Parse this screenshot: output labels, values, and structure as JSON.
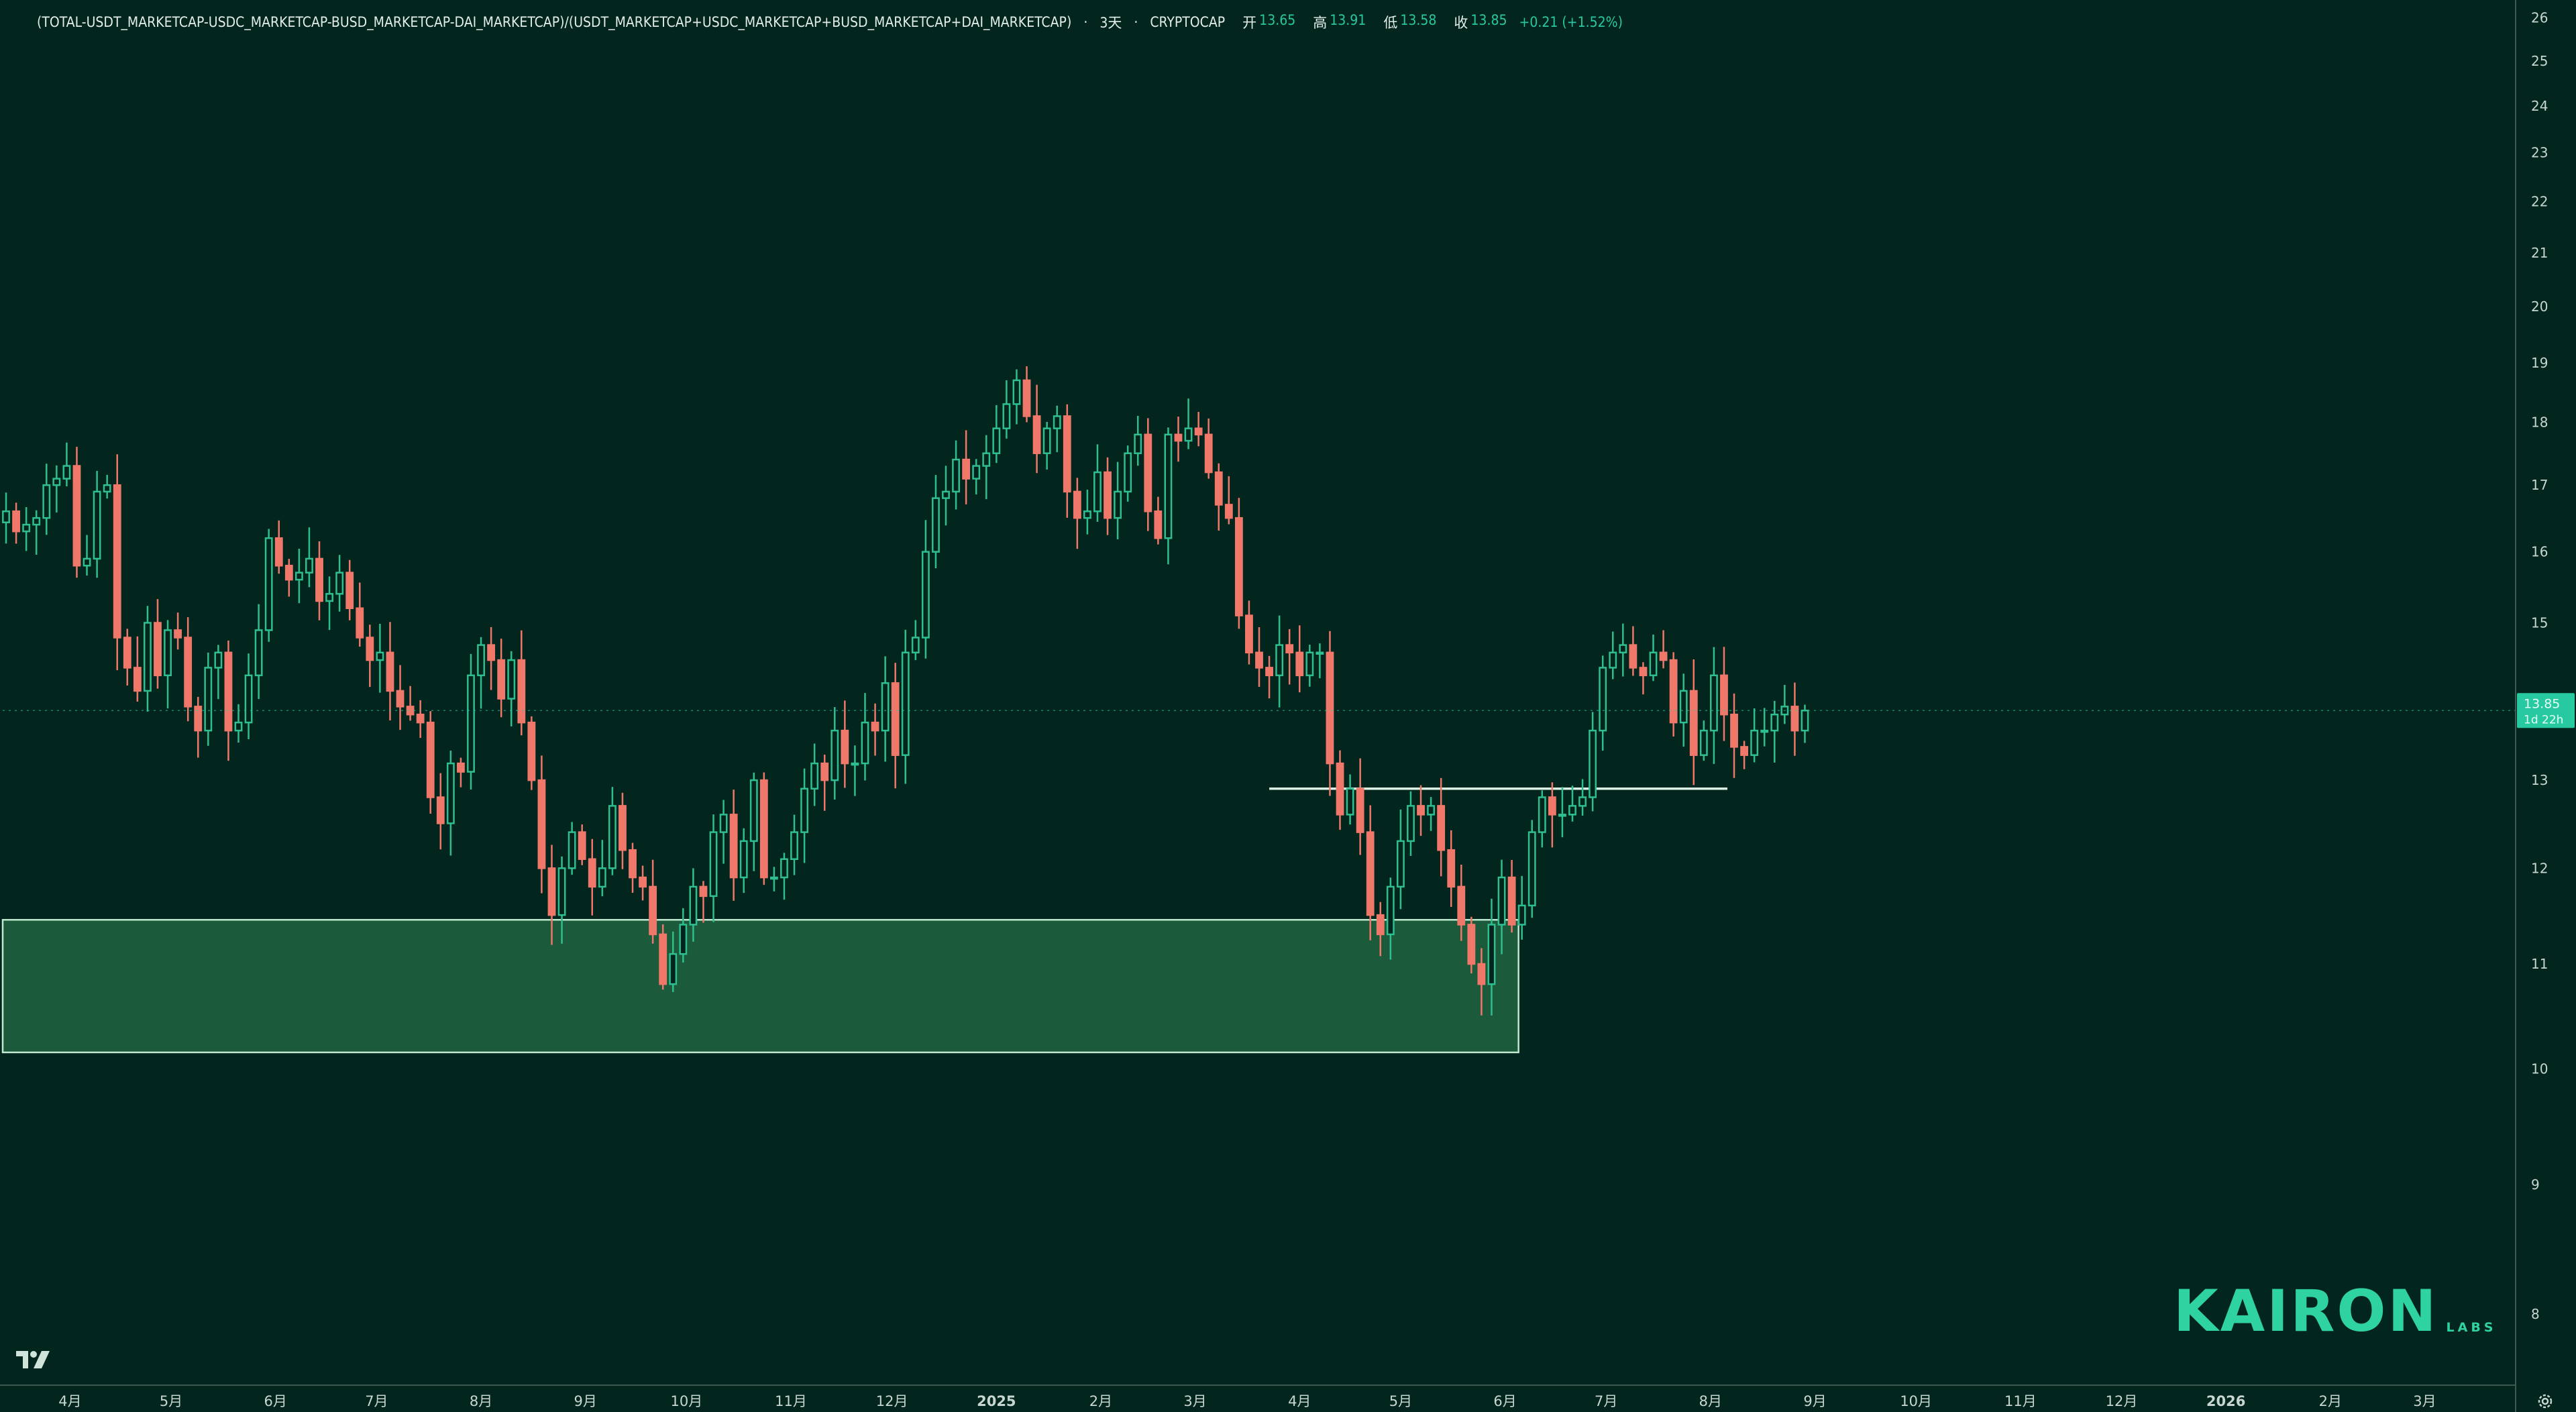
{
  "header": {
    "symbol": "(TOTAL-USDT_MARKETCAP-USDC_MARKETCAP-BUSD_MARKETCAP-DAI_MARKETCAP)/(USDT_MARKETCAP+USDC_MARKETCAP+BUSD_MARKETCAP+DAI_MARKETCAP)",
    "interval": "3天",
    "exchange": "CRYPTOCAP",
    "sep": "·",
    "open_label": "开",
    "open": "13.65",
    "high_label": "高",
    "high": "13.91",
    "low_label": "低",
    "low": "13.58",
    "close_label": "收",
    "close": "13.85",
    "change": "+0.21 (+1.52%)"
  },
  "price_tag": {
    "value": "13.85",
    "countdown": "1d 22h"
  },
  "brand": {
    "name": "KAIRON",
    "sub": "LABS"
  },
  "colors": {
    "background": "#02251E",
    "up": "#2FBF8F",
    "down": "#F0786A",
    "zone_fill": "#1B5A3A",
    "zone_stroke": "#BFE8D0",
    "level_line": "#DCEFE4",
    "axis_text": "#C8D6D1",
    "price_tag": "#26C9A0",
    "brand": "#2ED3A1"
  },
  "chart_data": {
    "type": "candlestick",
    "title": "",
    "y_scale": "log",
    "ylim": [
      7.5,
      26.2
    ],
    "y_ticks": [
      8,
      9,
      10,
      11,
      12,
      13,
      14,
      15,
      16,
      17,
      18,
      19,
      20,
      21,
      22,
      23,
      24,
      25,
      26
    ],
    "x_ticks": [
      "4月",
      "5月",
      "6月",
      "7月",
      "8月",
      "9月",
      "10月",
      "11月",
      "12月",
      "2025",
      "2月",
      "3月",
      "4月",
      "5月",
      "6月",
      "7月",
      "8月",
      "9月",
      "10月",
      "11月",
      "12月",
      "2026",
      "2月",
      "3月"
    ],
    "x_tick_dates": [
      "2024-04-01",
      "2024-05-01",
      "2024-06-01",
      "2024-07-01",
      "2024-08-01",
      "2024-09-01",
      "2024-10-01",
      "2024-11-01",
      "2024-12-01",
      "2025-01-01",
      "2025-02-01",
      "2025-03-01",
      "2025-04-01",
      "2025-05-01",
      "2025-06-01",
      "2025-07-01",
      "2025-08-01",
      "2025-09-01",
      "2025-10-01",
      "2025-11-01",
      "2025-12-01",
      "2026-01-01",
      "2026-02-01",
      "2026-03-01"
    ],
    "x_range": [
      "2024-03-12",
      "2026-03-28"
    ],
    "candle_interval_days": 3,
    "first_candle_date": "2024-03-13",
    "closes": [
      16.6,
      16.3,
      16.4,
      16.5,
      17.0,
      17.1,
      17.3,
      15.8,
      15.9,
      16.9,
      17.0,
      14.8,
      14.4,
      14.1,
      15.0,
      14.3,
      14.9,
      14.8,
      13.9,
      13.6,
      14.4,
      14.6,
      13.6,
      13.7,
      14.3,
      14.9,
      16.2,
      15.8,
      15.6,
      15.7,
      15.9,
      15.3,
      15.4,
      15.7,
      15.2,
      14.8,
      14.5,
      14.6,
      14.1,
      13.9,
      13.8,
      13.7,
      12.8,
      12.5,
      13.2,
      13.1,
      14.3,
      14.7,
      14.5,
      14.0,
      14.5,
      13.7,
      13.0,
      12.0,
      11.5,
      12.0,
      12.4,
      12.1,
      11.8,
      12.0,
      12.7,
      12.2,
      11.9,
      11.8,
      11.3,
      10.8,
      11.1,
      11.4,
      11.8,
      11.7,
      12.4,
      12.6,
      11.9,
      12.3,
      13.0,
      11.9,
      11.9,
      12.1,
      12.4,
      12.9,
      13.2,
      13.0,
      13.6,
      13.2,
      13.2,
      13.7,
      13.6,
      14.2,
      13.3,
      14.6,
      14.8,
      16.0,
      16.8,
      16.9,
      17.4,
      17.1,
      17.3,
      17.5,
      17.9,
      18.3,
      18.7,
      18.1,
      17.5,
      17.9,
      18.1,
      16.9,
      16.5,
      16.6,
      17.2,
      16.5,
      16.9,
      17.5,
      17.8,
      16.6,
      16.2,
      17.8,
      17.7,
      17.9,
      17.8,
      17.2,
      16.7,
      16.5,
      15.1,
      14.6,
      14.4,
      14.3,
      14.7,
      14.6,
      14.3,
      14.6,
      14.6,
      13.2,
      12.6,
      12.9,
      12.4,
      11.5,
      11.3,
      11.8,
      12.3,
      12.7,
      12.6,
      12.7,
      12.2,
      11.8,
      11.4,
      11.0,
      10.8,
      11.4,
      11.9,
      11.4,
      11.6,
      12.4,
      12.8,
      12.6,
      12.6,
      12.7,
      12.8,
      13.6,
      14.4,
      14.6,
      14.7,
      14.4,
      14.3,
      14.6,
      14.5,
      13.7,
      14.1,
      13.3,
      13.6,
      14.3,
      13.8,
      13.4,
      13.3,
      13.6,
      13.6,
      13.8,
      13.9,
      13.6,
      13.85
    ],
    "price_line": 13.85,
    "annotations": [
      {
        "type": "rect_zone",
        "start": "2024-03-12",
        "end": "2025-06-05",
        "low": 10.15,
        "high": 11.45
      },
      {
        "type": "horizontal_segment",
        "start": "2025-03-23",
        "end": "2025-08-06",
        "value": 12.9
      }
    ]
  }
}
